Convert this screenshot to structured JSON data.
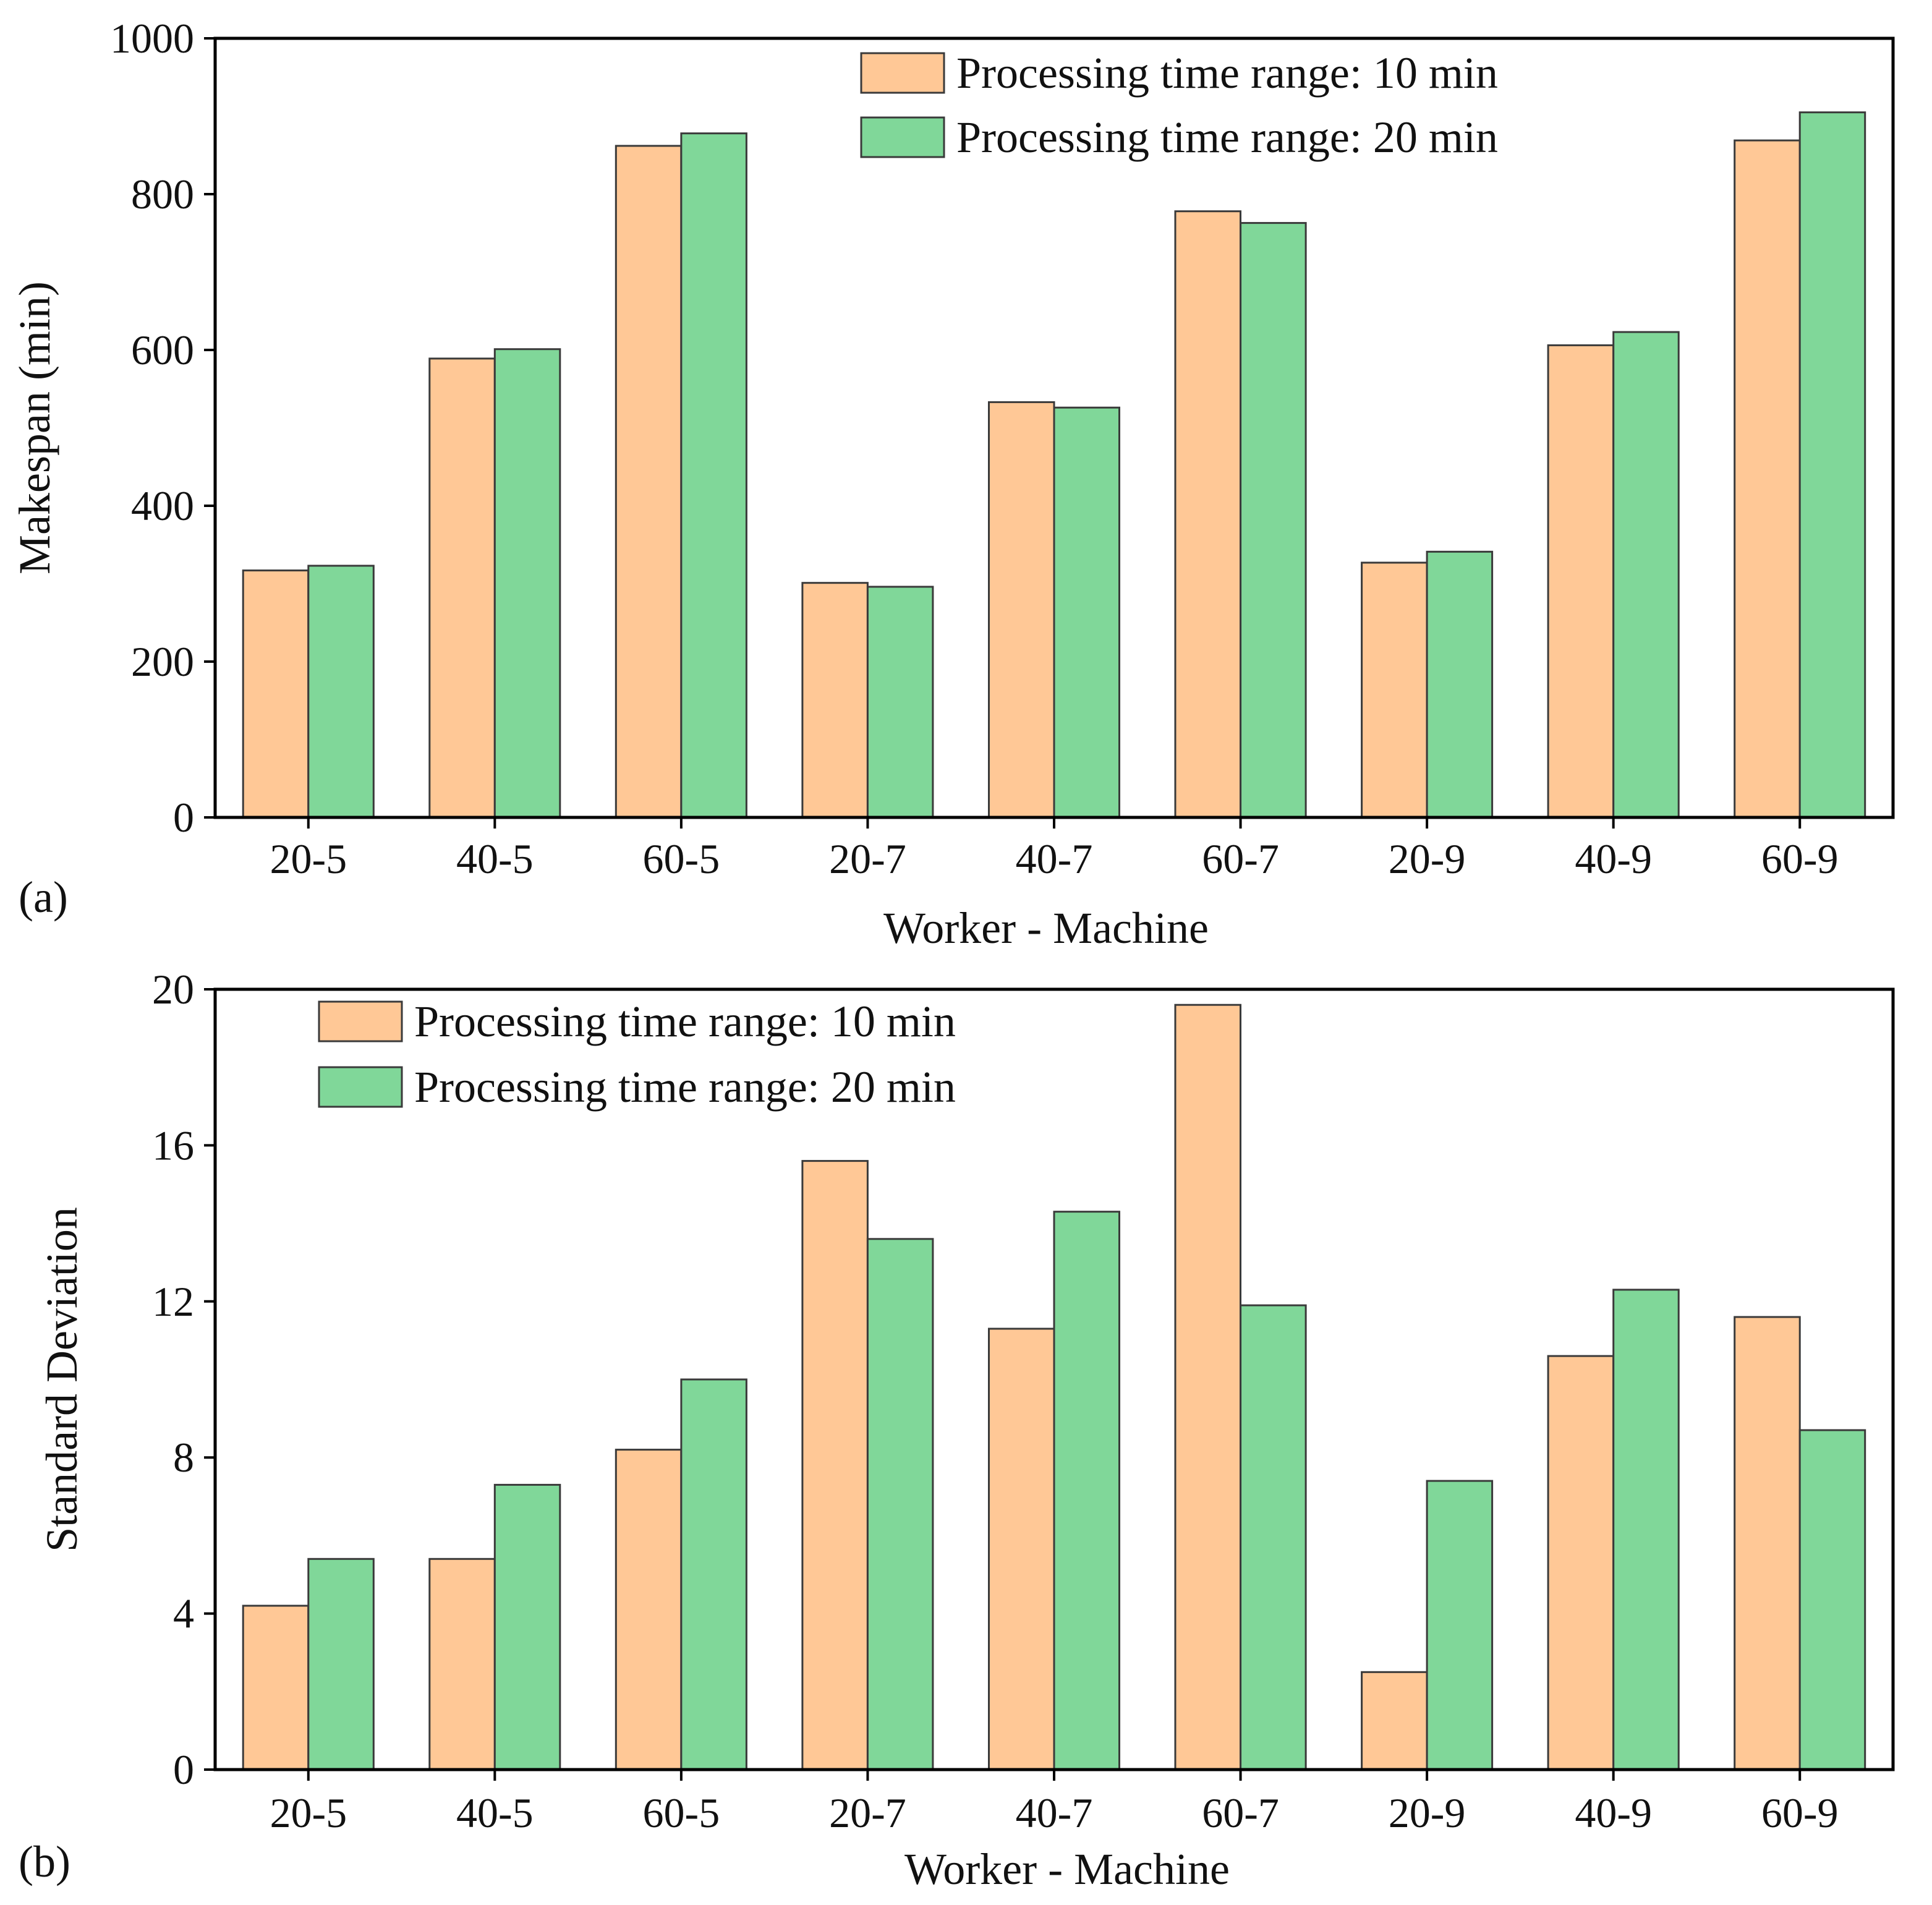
{
  "colors": {
    "series_10": "#ffc896",
    "series_20": "#80d799",
    "bar_stroke": "#3a3a3a",
    "axis": "#000000"
  },
  "chart_data": [
    {
      "type": "bar",
      "panel_label": "(a)",
      "categories": [
        "20-5",
        "40-5",
        "60-5",
        "20-7",
        "40-7",
        "60-7",
        "20-9",
        "40-9",
        "60-9"
      ],
      "series": [
        {
          "name": "Processing time range: 10 min",
          "values": [
            317,
            589,
            862,
            301,
            533,
            778,
            327,
            606,
            869
          ]
        },
        {
          "name": "Processing time range: 20 min",
          "values": [
            323,
            601,
            878,
            296,
            526,
            763,
            341,
            623,
            905
          ]
        }
      ],
      "xlabel": "Worker - Machine",
      "ylabel": "Makespan (min)",
      "ylim": [
        0,
        1000
      ],
      "yticks": [
        0,
        200,
        400,
        600,
        800,
        1000
      ],
      "legend_position": "top-right",
      "grid": false
    },
    {
      "type": "bar",
      "panel_label": "(b)",
      "categories": [
        "20-5",
        "40-5",
        "60-5",
        "20-7",
        "40-7",
        "60-7",
        "20-9",
        "40-9",
        "60-9"
      ],
      "series": [
        {
          "name": "Processing time range: 10 min",
          "values": [
            4.2,
            5.4,
            8.2,
            15.6,
            11.3,
            19.6,
            2.5,
            10.6,
            11.6
          ]
        },
        {
          "name": "Processing time range: 20 min",
          "values": [
            5.4,
            7.3,
            10.0,
            13.6,
            14.3,
            11.9,
            7.4,
            12.3,
            8.7
          ]
        }
      ],
      "xlabel": "Worker - Machine",
      "ylabel": "Standard Deviation",
      "ylim": [
        0,
        20
      ],
      "yticks": [
        0,
        4,
        8,
        12,
        16,
        20
      ],
      "legend_position": "top-left",
      "grid": false
    }
  ]
}
